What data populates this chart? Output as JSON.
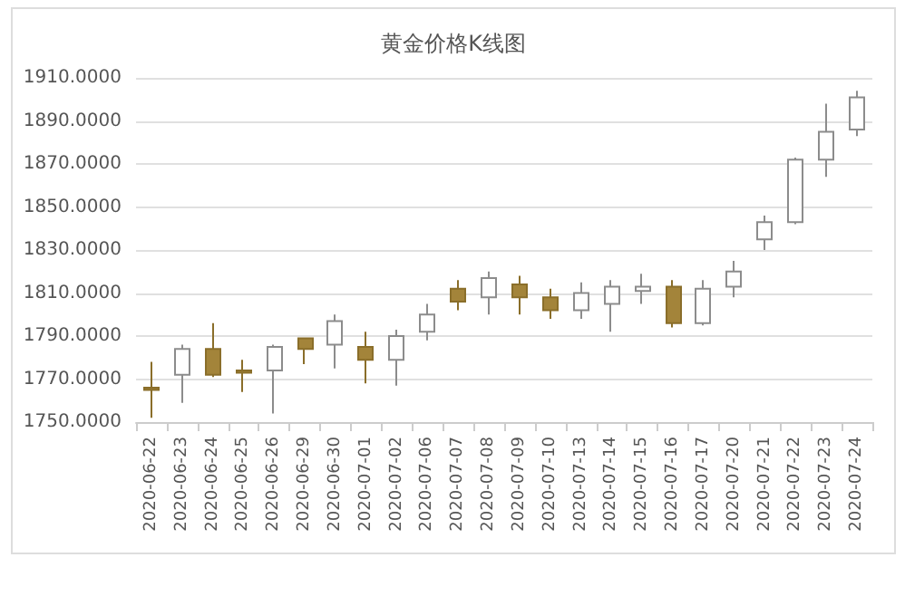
{
  "chart_data": {
    "type": "candlestick",
    "title": "黄金价格K线图",
    "categories": [
      "2020-06-22",
      "2020-06-23",
      "2020-06-24",
      "2020-06-25",
      "2020-06-26",
      "2020-06-29",
      "2020-06-30",
      "2020-07-01",
      "2020-07-02",
      "2020-07-06",
      "2020-07-07",
      "2020-07-08",
      "2020-07-09",
      "2020-07-10",
      "2020-07-13",
      "2020-07-14",
      "2020-07-15",
      "2020-07-16",
      "2020-07-17",
      "2020-07-20",
      "2020-07-21",
      "2020-07-22",
      "2020-07-23",
      "2020-07-24"
    ],
    "ohlc": [
      [
        1766,
        1778,
        1752,
        1765
      ],
      [
        1772,
        1786,
        1759,
        1784
      ],
      [
        1784,
        1796,
        1771,
        1772
      ],
      [
        1774,
        1779,
        1764,
        1773
      ],
      [
        1774,
        1786,
        1754,
        1785
      ],
      [
        1789,
        1789,
        1777,
        1784
      ],
      [
        1786,
        1800,
        1775,
        1797
      ],
      [
        1785,
        1792,
        1768,
        1779
      ],
      [
        1779,
        1793,
        1767,
        1790
      ],
      [
        1792,
        1805,
        1788,
        1800
      ],
      [
        1812,
        1816,
        1802,
        1806
      ],
      [
        1808,
        1820,
        1800,
        1817
      ],
      [
        1814,
        1818,
        1800,
        1808
      ],
      [
        1808,
        1812,
        1798,
        1802
      ],
      [
        1802,
        1815,
        1798,
        1810
      ],
      [
        1805,
        1816,
        1792,
        1813
      ],
      [
        1811,
        1819,
        1805,
        1813
      ],
      [
        1813,
        1816,
        1794,
        1796
      ],
      [
        1796,
        1816,
        1795,
        1812
      ],
      [
        1813,
        1825,
        1808,
        1820
      ],
      [
        1835,
        1846,
        1830,
        1843
      ],
      [
        1843,
        1873,
        1842,
        1872
      ],
      [
        1872,
        1898,
        1864,
        1885
      ],
      [
        1886,
        1904,
        1883,
        1901
      ]
    ],
    "ylim": [
      1750,
      1910
    ],
    "yticks": [
      {
        "value": 1750,
        "label": "1750.0000"
      },
      {
        "value": 1770,
        "label": "1770.0000"
      },
      {
        "value": 1790,
        "label": "1790.0000"
      },
      {
        "value": 1810,
        "label": "1810.0000"
      },
      {
        "value": 1830,
        "label": "1830.0000"
      },
      {
        "value": 1850,
        "label": "1850.0000"
      },
      {
        "value": 1870,
        "label": "1870.0000"
      },
      {
        "value": 1890,
        "label": "1890.0000"
      },
      {
        "value": 1910,
        "label": "1910.0000"
      }
    ],
    "grid": "y"
  }
}
